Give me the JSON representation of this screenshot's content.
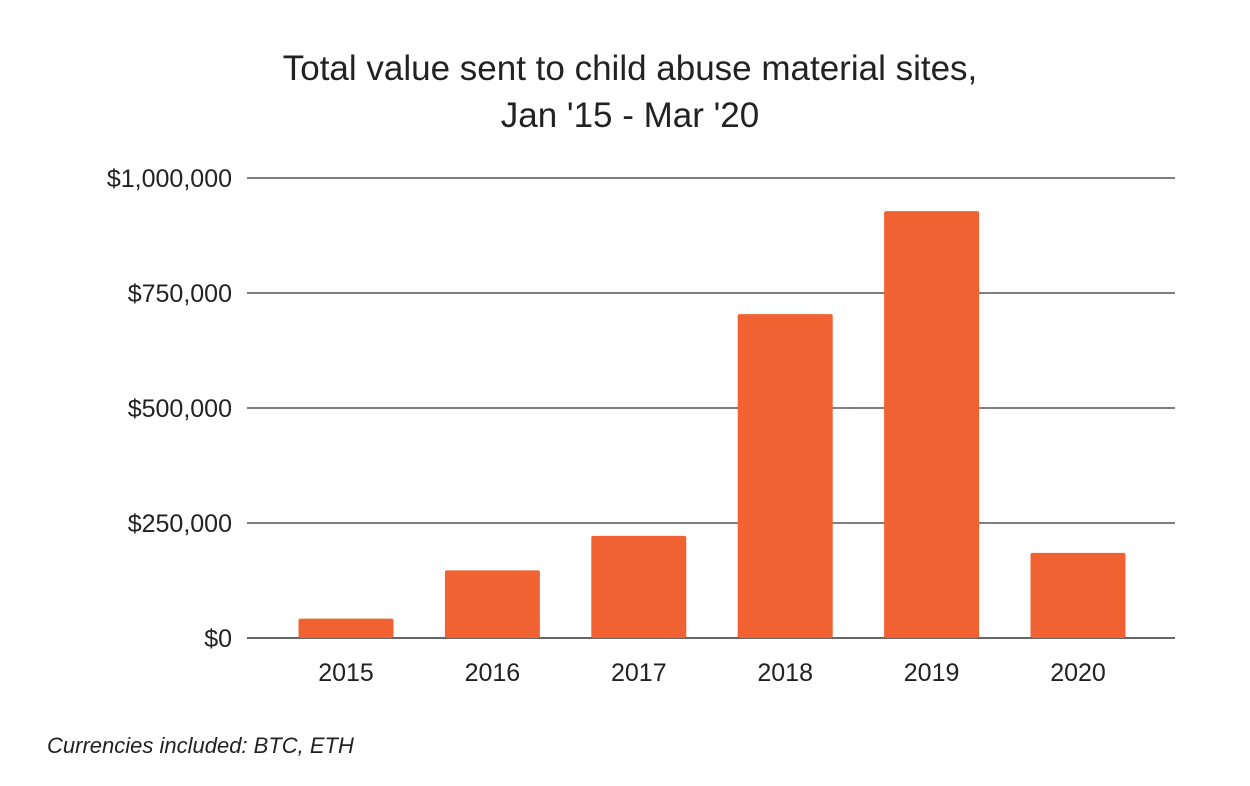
{
  "chart_data": {
    "type": "bar",
    "title_lines": [
      "Total value sent to child abuse material sites,",
      "Jan '15 - Mar '20"
    ],
    "categories": [
      "2015",
      "2016",
      "2017",
      "2018",
      "2019",
      "2020"
    ],
    "values": [
      42000,
      147000,
      222000,
      704000,
      928000,
      185000
    ],
    "ylim": [
      0,
      1000000
    ],
    "yticks": [
      {
        "value": 0,
        "label": "$0"
      },
      {
        "value": 250000,
        "label": "$250,000"
      },
      {
        "value": 500000,
        "label": "$500,000"
      },
      {
        "value": 750000,
        "label": "$750,000"
      },
      {
        "value": 1000000,
        "label": "$1,000,000"
      }
    ],
    "grid": true,
    "bar_color": "#f06231",
    "grid_color": "#333333",
    "xlabel": "",
    "ylabel": ""
  },
  "footnote": "Currencies included: BTC, ETH"
}
